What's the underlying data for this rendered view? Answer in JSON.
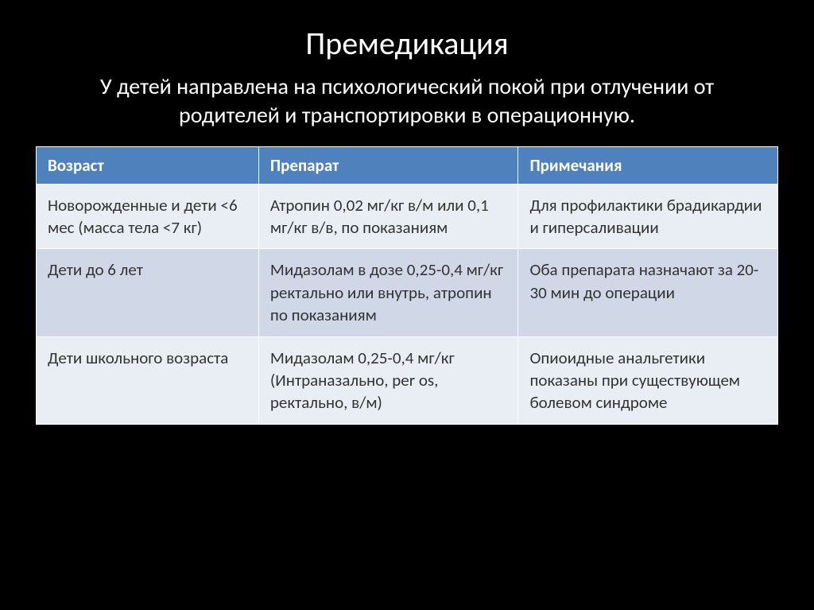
{
  "slide": {
    "title": "Премедикация",
    "subtitle": "У детей направлена на психологический покой при отлучении от родителей и транспортировки в операционную.",
    "background_color": "#000000",
    "text_color": "#ffffff",
    "title_fontsize": 40,
    "subtitle_fontsize": 28
  },
  "table": {
    "header_bg": "#4f81bd",
    "header_color": "#ffffff",
    "row_light_bg": "#e9edf4",
    "row_dark_bg": "#d0d8e8",
    "cell_color": "#333333",
    "fontsize": 21,
    "columns": [
      {
        "label": "Возраст",
        "width": "30%"
      },
      {
        "label": "Препарат",
        "width": "35%"
      },
      {
        "label": "Примечания",
        "width": "35%"
      }
    ],
    "rows": [
      {
        "style": "light",
        "cells": [
          "Новорожденные и дети <6 мес (масса тела <7 кг)",
          "Атропин 0,02 мг/кг в/м или 0,1 мг/кг в/в, по показаниям",
          "Для профилактики брадикардии и гиперсаливации"
        ]
      },
      {
        "style": "dark",
        "cells": [
          "Дети до 6 лет",
          "Мидазолам в дозе 0,25-0,4 мг/кг ректально или внутрь, атропин по показаниям",
          "Оба препарата назначают за 20-30 мин до операции"
        ]
      },
      {
        "style": "light",
        "cells": [
          "Дети школьного возраста",
          "Мидазолам 0,25-0,4 мг/кг (Интраназально, per os, ректально,  в/м)",
          "Опиоидные анальгетики показаны при существующем болевом синдроме"
        ]
      }
    ]
  }
}
